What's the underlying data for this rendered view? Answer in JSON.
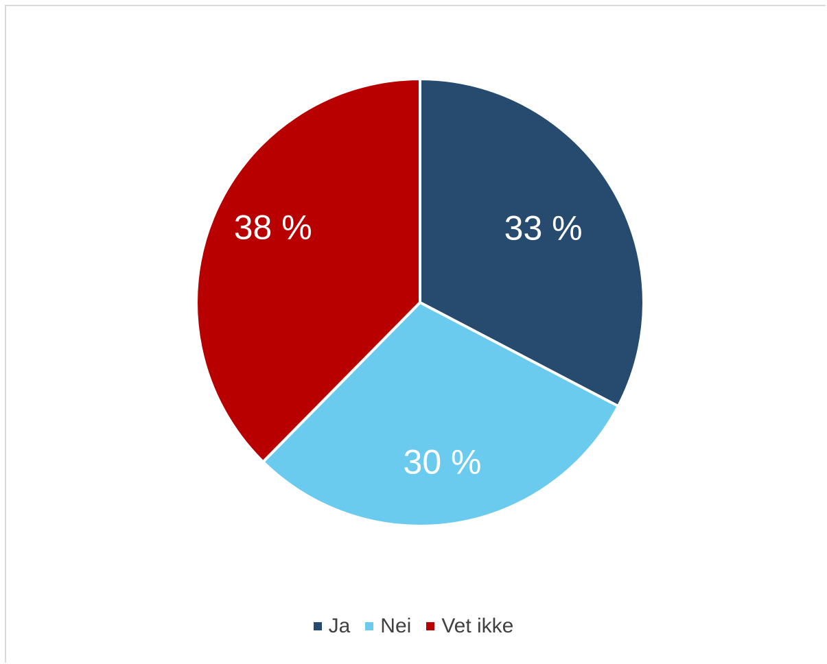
{
  "chart_data": {
    "type": "pie",
    "title": "",
    "categories": [
      "Ja",
      "Nei",
      "Vet ikke"
    ],
    "values": [
      33,
      30,
      38
    ],
    "labels": [
      "33 %",
      "30 %",
      "38 %"
    ],
    "colors": [
      "#264b6e",
      "#6bcbee",
      "#b80000"
    ],
    "start_angle": "12 o'clock",
    "direction": "clockwise",
    "legend_position": "bottom"
  }
}
